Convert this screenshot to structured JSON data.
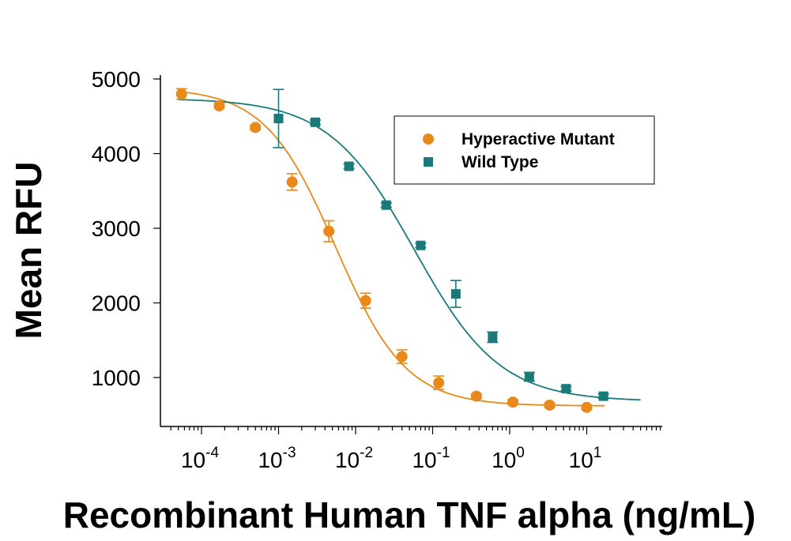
{
  "chart_data": {
    "type": "scatter",
    "title": "",
    "xlabel": "Recombinant Human TNF alpha (ng/mL)",
    "ylabel": "Mean RFU",
    "x_scale": "log",
    "xlim": [
      3e-05,
      70
    ],
    "ylim": [
      400,
      5150
    ],
    "x_ticks": [
      {
        "value": 0.0001,
        "base": "10",
        "exp": "-4"
      },
      {
        "value": 0.001,
        "base": "10",
        "exp": "-3"
      },
      {
        "value": 0.01,
        "base": "10",
        "exp": "-2"
      },
      {
        "value": 0.1,
        "base": "10",
        "exp": "-1"
      },
      {
        "value": 1,
        "base": "10",
        "exp": "0"
      },
      {
        "value": 10,
        "base": "10",
        "exp": "1"
      }
    ],
    "y_ticks": [
      {
        "value": 1000,
        "label": "1000"
      },
      {
        "value": 2000,
        "label": "2000"
      },
      {
        "value": 3000,
        "label": "3000"
      },
      {
        "value": 4000,
        "label": "4000"
      },
      {
        "value": 5000,
        "label": "5000"
      }
    ],
    "grid": false,
    "legend_position": "top-right",
    "series": [
      {
        "name": "Hyperactive Mutant",
        "color": "#e8891a",
        "marker": "circle",
        "x": [
          5.5e-05,
          0.00017,
          0.0005,
          0.0015,
          0.0045,
          0.0135,
          0.04,
          0.12,
          0.37,
          1.1,
          3.3,
          10
        ],
        "y": [
          4800,
          4640,
          4350,
          3620,
          2960,
          2030,
          1280,
          930,
          750,
          670,
          630,
          600
        ],
        "err": [
          70,
          30,
          30,
          110,
          140,
          100,
          90,
          90,
          30,
          30,
          30,
          30
        ],
        "fit": {
          "top": 4880,
          "bottom": 620,
          "ec50": 0.0055,
          "hill": 0.95
        }
      },
      {
        "name": "Wild Type",
        "color": "#1a7a7a",
        "marker": "square",
        "x": [
          0.001,
          0.003,
          0.0082,
          0.025,
          0.07,
          0.2,
          0.6,
          1.8,
          5.4,
          16.5
        ],
        "y": [
          4470,
          4420,
          3830,
          3310,
          2770,
          2120,
          1540,
          1010,
          850,
          750
        ],
        "err": [
          390,
          30,
          30,
          30,
          30,
          180,
          70,
          60,
          30,
          30
        ],
        "fit": {
          "top": 4740,
          "bottom": 680,
          "ec50": 0.058,
          "hill": 0.78
        }
      }
    ]
  }
}
